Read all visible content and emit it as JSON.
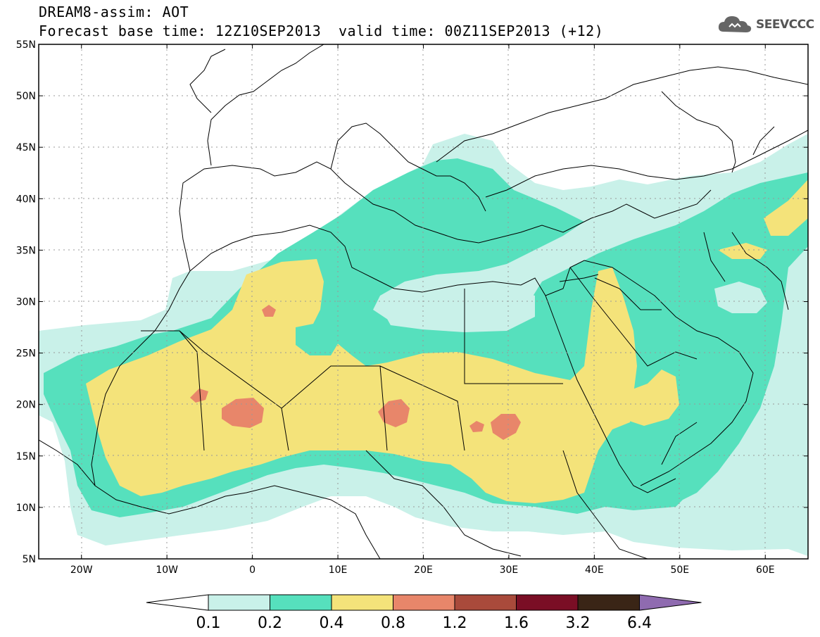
{
  "header": {
    "title": "DREAM8-assim: AOT",
    "base_time": "Forecast base time: 12Z10SEP2013",
    "valid_time": "valid time: 00Z11SEP2013 (+12)",
    "logo_text": "SEEVCCC"
  },
  "map": {
    "lon_range": [
      -25,
      65
    ],
    "lat_range": [
      5,
      55
    ],
    "lat_labels": [
      "5N",
      "10N",
      "15N",
      "20N",
      "25N",
      "30N",
      "35N",
      "40N",
      "45N",
      "50N",
      "55N"
    ],
    "lon_labels": [
      "20W",
      "10W",
      "0",
      "10E",
      "20E",
      "30E",
      "40E",
      "50E",
      "60E"
    ],
    "gridlines": "dotted"
  },
  "legend": {
    "labels": [
      "0.1",
      "0.2",
      "0.4",
      "0.8",
      "1.2",
      "1.6",
      "3.2",
      "6.4"
    ],
    "colors": {
      "below": "#ffffff",
      "b1": "#c9f1e9",
      "b2": "#56e0bd",
      "b3": "#f4e37a",
      "b4": "#e8866a",
      "b5": "#a94a3b",
      "b6": "#7a0e25",
      "b7": "#3a2516",
      "above": "#8f6bb0"
    }
  },
  "colors": {
    "level1": "#c9f1e9",
    "level2": "#56e0bd",
    "level3": "#f4e37a",
    "level4": "#e8866a",
    "coast": "#000000"
  }
}
